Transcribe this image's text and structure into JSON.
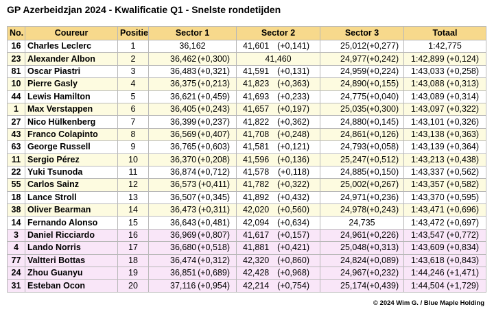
{
  "title": "GP Azerbeidzjan 2024 - Kwalificatie Q1 - Snelste rondetijden",
  "headers": [
    "No.",
    "Coureur",
    "Positie",
    "Sector 1",
    "Sector 2",
    "Sector 3",
    "Totaal"
  ],
  "credit": "© 2024 Wim G. / Blue Maple Holding",
  "colors": {
    "header": "#f7d98c",
    "yellow": "#fdfbe0",
    "pink": "#f9e6f8",
    "white": "#ffffff"
  },
  "rows": [
    {
      "no": "16",
      "driver": "Charles Leclerc",
      "pos": "1",
      "s1": "36,162",
      "s1d": "",
      "s2": "41,601",
      "s2d": "(+0,141)",
      "s3": "25,012",
      "s3d": "(+0,277)",
      "total": "1:42,775",
      "band": "white"
    },
    {
      "no": "23",
      "driver": "Alexander Albon",
      "pos": "2",
      "s1": "36,462",
      "s1d": "(+0,300)",
      "s2": "41,460",
      "s2d": "",
      "s3": "24,977",
      "s3d": "(+0,242)",
      "total": "1:42,899 (+0,124)",
      "band": "yellow"
    },
    {
      "no": "81",
      "driver": "Oscar Piastri",
      "pos": "3",
      "s1": "36,483",
      "s1d": "(+0,321)",
      "s2": "41,591",
      "s2d": "(+0,131)",
      "s3": "24,959",
      "s3d": "(+0,224)",
      "total": "1:43,033 (+0,258)",
      "band": "white"
    },
    {
      "no": "10",
      "driver": "Pierre Gasly",
      "pos": "4",
      "s1": "36,375",
      "s1d": "(+0,213)",
      "s2": "41,823",
      "s2d": "(+0,363)",
      "s3": "24,890",
      "s3d": "(+0,155)",
      "total": "1:43,088 (+0,313)",
      "band": "yellow"
    },
    {
      "no": "44",
      "driver": "Lewis Hamilton",
      "pos": "5",
      "s1": "36,621",
      "s1d": "(+0,459)",
      "s2": "41,693",
      "s2d": "(+0,233)",
      "s3": "24,775",
      "s3d": "(+0,040)",
      "total": "1:43,089 (+0,314)",
      "band": "white"
    },
    {
      "no": "1",
      "driver": "Max Verstappen",
      "pos": "6",
      "s1": "36,405",
      "s1d": "(+0,243)",
      "s2": "41,657",
      "s2d": "(+0,197)",
      "s3": "25,035",
      "s3d": "(+0,300)",
      "total": "1:43,097 (+0,322)",
      "band": "yellow"
    },
    {
      "no": "27",
      "driver": "Nico Hülkenberg",
      "pos": "7",
      "s1": "36,399",
      "s1d": "(+0,237)",
      "s2": "41,822",
      "s2d": "(+0,362)",
      "s3": "24,880",
      "s3d": "(+0,145)",
      "total": "1:43,101 (+0,326)",
      "band": "white"
    },
    {
      "no": "43",
      "driver": "Franco Colapinto",
      "pos": "8",
      "s1": "36,569",
      "s1d": "(+0,407)",
      "s2": "41,708",
      "s2d": "(+0,248)",
      "s3": "24,861",
      "s3d": "(+0,126)",
      "total": "1:43,138 (+0,363)",
      "band": "yellow"
    },
    {
      "no": "63",
      "driver": "George Russell",
      "pos": "9",
      "s1": "36,765",
      "s1d": "(+0,603)",
      "s2": "41,581",
      "s2d": "(+0,121)",
      "s3": "24,793",
      "s3d": "(+0,058)",
      "total": "1:43,139 (+0,364)",
      "band": "white"
    },
    {
      "no": "11",
      "driver": "Sergio Pérez",
      "pos": "10",
      "s1": "36,370",
      "s1d": "(+0,208)",
      "s2": "41,596",
      "s2d": "(+0,136)",
      "s3": "25,247",
      "s3d": "(+0,512)",
      "total": "1:43,213 (+0,438)",
      "band": "yellow"
    },
    {
      "no": "22",
      "driver": "Yuki Tsunoda",
      "pos": "11",
      "s1": "36,874",
      "s1d": "(+0,712)",
      "s2": "41,578",
      "s2d": "(+0,118)",
      "s3": "24,885",
      "s3d": "(+0,150)",
      "total": "1:43,337 (+0,562)",
      "band": "white"
    },
    {
      "no": "55",
      "driver": "Carlos Sainz",
      "pos": "12",
      "s1": "36,573",
      "s1d": "(+0,411)",
      "s2": "41,782",
      "s2d": "(+0,322)",
      "s3": "25,002",
      "s3d": "(+0,267)",
      "total": "1:43,357 (+0,582)",
      "band": "yellow"
    },
    {
      "no": "18",
      "driver": "Lance Stroll",
      "pos": "13",
      "s1": "36,507",
      "s1d": "(+0,345)",
      "s2": "41,892",
      "s2d": "(+0,432)",
      "s3": "24,971",
      "s3d": "(+0,236)",
      "total": "1:43,370 (+0,595)",
      "band": "white"
    },
    {
      "no": "38",
      "driver": "Oliver Bearman",
      "pos": "14",
      "s1": "36,473",
      "s1d": "(+0,311)",
      "s2": "42,020",
      "s2d": "(+0,560)",
      "s3": "24,978",
      "s3d": "(+0,243)",
      "total": "1:43,471 (+0,696)",
      "band": "yellow"
    },
    {
      "no": "14",
      "driver": "Fernando Alonso",
      "pos": "15",
      "s1": "36,643",
      "s1d": "(+0,481)",
      "s2": "42,094",
      "s2d": "(+0,634)",
      "s3": "24,735",
      "s3d": "",
      "total": "1:43,472 (+0,697)",
      "band": "white"
    },
    {
      "no": "3",
      "driver": "Daniel Ricciardo",
      "pos": "16",
      "s1": "36,969",
      "s1d": "(+0,807)",
      "s2": "41,617",
      "s2d": "(+0,157)",
      "s3": "24,961",
      "s3d": "(+0,226)",
      "total": "1:43,547 (+0,772)",
      "band": "pink"
    },
    {
      "no": "4",
      "driver": "Lando Norris",
      "pos": "17",
      "s1": "36,680",
      "s1d": "(+0,518)",
      "s2": "41,881",
      "s2d": "(+0,421)",
      "s3": "25,048",
      "s3d": "(+0,313)",
      "total": "1:43,609 (+0,834)",
      "band": "pink"
    },
    {
      "no": "77",
      "driver": "Valtteri Bottas",
      "pos": "18",
      "s1": "36,474",
      "s1d": "(+0,312)",
      "s2": "42,320",
      "s2d": "(+0,860)",
      "s3": "24,824",
      "s3d": "(+0,089)",
      "total": "1:43,618 (+0,843)",
      "band": "pink"
    },
    {
      "no": "24",
      "driver": "Zhou Guanyu",
      "pos": "19",
      "s1": "36,851",
      "s1d": "(+0,689)",
      "s2": "42,428",
      "s2d": "(+0,968)",
      "s3": "24,967",
      "s3d": "(+0,232)",
      "total": "1:44,246 (+1,471)",
      "band": "pink"
    },
    {
      "no": "31",
      "driver": "Esteban Ocon",
      "pos": "20",
      "s1": "37,116",
      "s1d": "(+0,954)",
      "s2": "42,214",
      "s2d": "(+0,754)",
      "s3": "25,174",
      "s3d": "(+0,439)",
      "total": "1:44,504 (+1,729)",
      "band": "pink"
    }
  ]
}
